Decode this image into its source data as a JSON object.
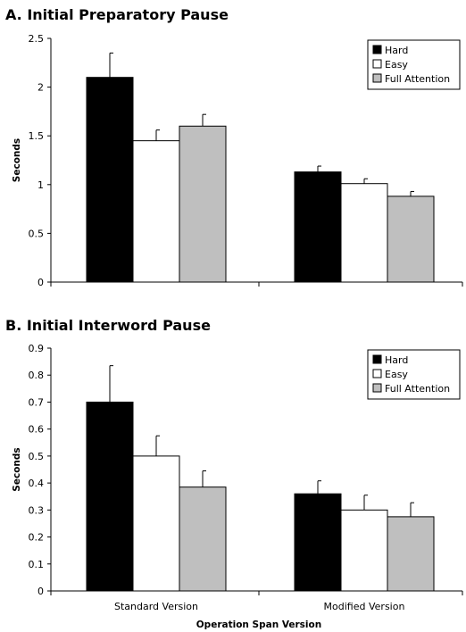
{
  "chart_data": [
    {
      "type": "bar",
      "title": "A. Initial Preparatory Pause",
      "ylabel": "Seconds",
      "xlabel": "",
      "categories": [
        "Standard Version",
        "Modified Version"
      ],
      "ylim": [
        0,
        2.5
      ],
      "yticks": [
        "0",
        "0.5",
        "1",
        "1.5",
        "2",
        "2.5"
      ],
      "series": [
        {
          "name": "Hard",
          "color": "#000000",
          "values": [
            2.1,
            1.13
          ],
          "errors": [
            0.25,
            0.06
          ]
        },
        {
          "name": "Easy",
          "color": "#ffffff",
          "values": [
            1.45,
            1.01
          ],
          "errors": [
            0.11,
            0.05
          ]
        },
        {
          "name": "Full Attention",
          "color": "#bfbfbf",
          "values": [
            1.6,
            0.88
          ],
          "errors": [
            0.12,
            0.05
          ]
        }
      ],
      "show_category_labels": false,
      "legend": "top-right"
    },
    {
      "type": "bar",
      "title": "B. Initial Interword Pause",
      "ylabel": "Seconds",
      "xlabel": "Operation Span Version",
      "categories": [
        "Standard Version",
        "Modified Version"
      ],
      "ylim": [
        0,
        0.9
      ],
      "yticks": [
        "0",
        "0.1",
        "0.2",
        "0.3",
        "0.4",
        "0.5",
        "0.6",
        "0.7",
        "0.8",
        "0.9"
      ],
      "series": [
        {
          "name": "Hard",
          "color": "#000000",
          "values": [
            0.7,
            0.36
          ],
          "errors": [
            0.135,
            0.048
          ]
        },
        {
          "name": "Easy",
          "color": "#ffffff",
          "values": [
            0.5,
            0.3
          ],
          "errors": [
            0.075,
            0.055
          ]
        },
        {
          "name": "Full Attention",
          "color": "#bfbfbf",
          "values": [
            0.385,
            0.275
          ],
          "errors": [
            0.06,
            0.052
          ]
        }
      ],
      "show_category_labels": true,
      "legend": "top-right"
    }
  ]
}
